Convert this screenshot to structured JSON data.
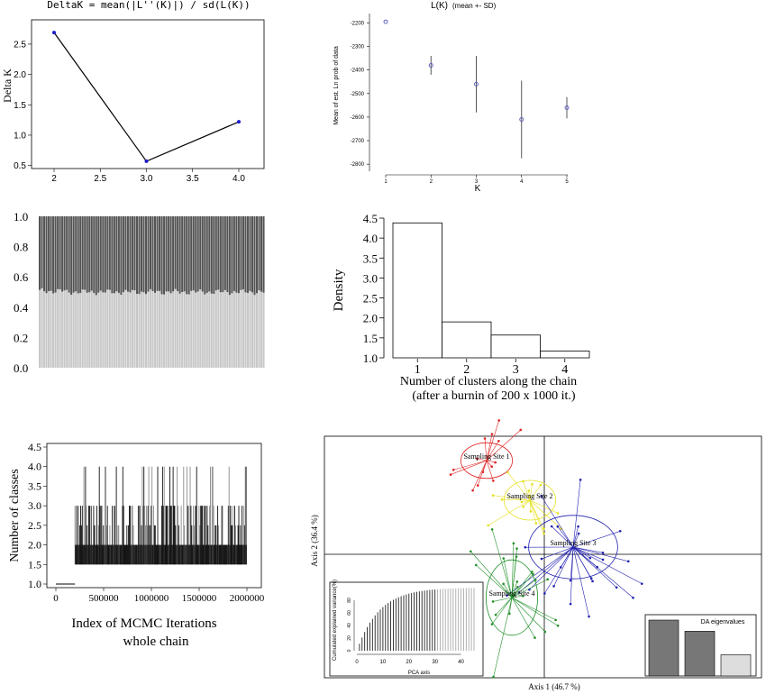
{
  "chart_data": [
    {
      "type": "line",
      "title": "DeltaK = mean(|L''(K)|) / sd(L(K))",
      "ylabel": "Delta K",
      "x": [
        2,
        3,
        4
      ],
      "values": [
        2.69,
        0.57,
        1.22
      ],
      "xlim": [
        2,
        4
      ],
      "ylim": [
        0.45,
        2.9
      ],
      "xticks": [
        "2",
        "2.5",
        "3.0",
        "3.5",
        "4.0"
      ],
      "yticks": [
        "0.5",
        "1.0",
        "1.5",
        "2.0",
        "2.5"
      ],
      "color": "#1a1acc"
    },
    {
      "type": "scatter",
      "title": "L(K)",
      "subtitle": "(mean +- SD)",
      "xlabel": "K",
      "ylabel": "Mean of est. Ln prob of data",
      "x": [
        1,
        2,
        3,
        4,
        5
      ],
      "mean": [
        -2195,
        -2380,
        -2460,
        -2610,
        -2560
      ],
      "sd": [
        0,
        40,
        120,
        165,
        45
      ],
      "xticks": [
        "1",
        "2",
        "3",
        "4",
        "5"
      ],
      "yticks": [
        "-2200",
        "-2300",
        "-2400",
        "-2500",
        "-2600",
        "-2700",
        "-2800"
      ],
      "ylim": [
        -2830,
        -2160
      ],
      "color": "#5555bb"
    },
    {
      "type": "bar",
      "stacked": true,
      "yticks": [
        "0.0",
        "0.2",
        "0.4",
        "0.6",
        "0.8",
        "1.0"
      ],
      "ylim": [
        0,
        1
      ],
      "n_bars": 100,
      "lower_mean": 0.5,
      "colors": [
        "#c8c8c8",
        "#545454"
      ]
    },
    {
      "type": "bar",
      "ylabel": "Density",
      "xlabel": "Number of clusters along the chain",
      "xlabel2": "(after a burnin of 200 x 1000 it.)",
      "categories": [
        "1",
        "2",
        "3",
        "4"
      ],
      "values": [
        4.38,
        1.9,
        1.57,
        1.17
      ],
      "ylim": [
        1.0,
        4.5
      ],
      "yticks": [
        "1.0",
        "1.5",
        "2.0",
        "2.5",
        "3.0",
        "3.5",
        "4.0",
        "4.5"
      ]
    },
    {
      "type": "line",
      "ylabel": "Number of classes",
      "xlabel": "Index of MCMC Iterations",
      "xlabel2": "whole chain",
      "xticks": [
        "0",
        "500000",
        "1000000",
        "1500000",
        "2000000"
      ],
      "yticks": [
        "1.0",
        "1.5",
        "2.0",
        "2.5",
        "3.0",
        "3.5",
        "4.0",
        "4.5"
      ],
      "xlim": [
        0,
        2000000
      ],
      "ylim": [
        1.0,
        4.5
      ],
      "burnin_x": 200000
    },
    {
      "type": "scatter",
      "xlabel": "Axis 1 (46.7 %)",
      "ylabel": "Axis 2 (36.4 %)",
      "series": [
        {
          "name": "Sampling Site 1",
          "color": "#e02020",
          "center": [
            -0.8,
            1.3
          ]
        },
        {
          "name": "Sampling Site 2",
          "color": "#e6e020",
          "center": [
            -0.2,
            0.75
          ]
        },
        {
          "name": "Sampling Site 3",
          "color": "#2020b0",
          "center": [
            0.4,
            0.1
          ]
        },
        {
          "name": "Sampling Site 4",
          "color": "#20902a",
          "center": [
            -0.45,
            -0.6
          ]
        }
      ],
      "inset_pca": {
        "xlabel": "PCA axis",
        "ylabel": "Cumulated explained variance(%)",
        "xticks": [
          "0",
          "10",
          "20",
          "30",
          "40"
        ],
        "yticks": [
          "0",
          "20",
          "40",
          "60",
          "80"
        ],
        "n_axes": 45,
        "retained": 30
      },
      "inset_eigen": {
        "title": "DA eigenvalues",
        "values": [
          1.0,
          0.8,
          0.38
        ]
      }
    }
  ]
}
